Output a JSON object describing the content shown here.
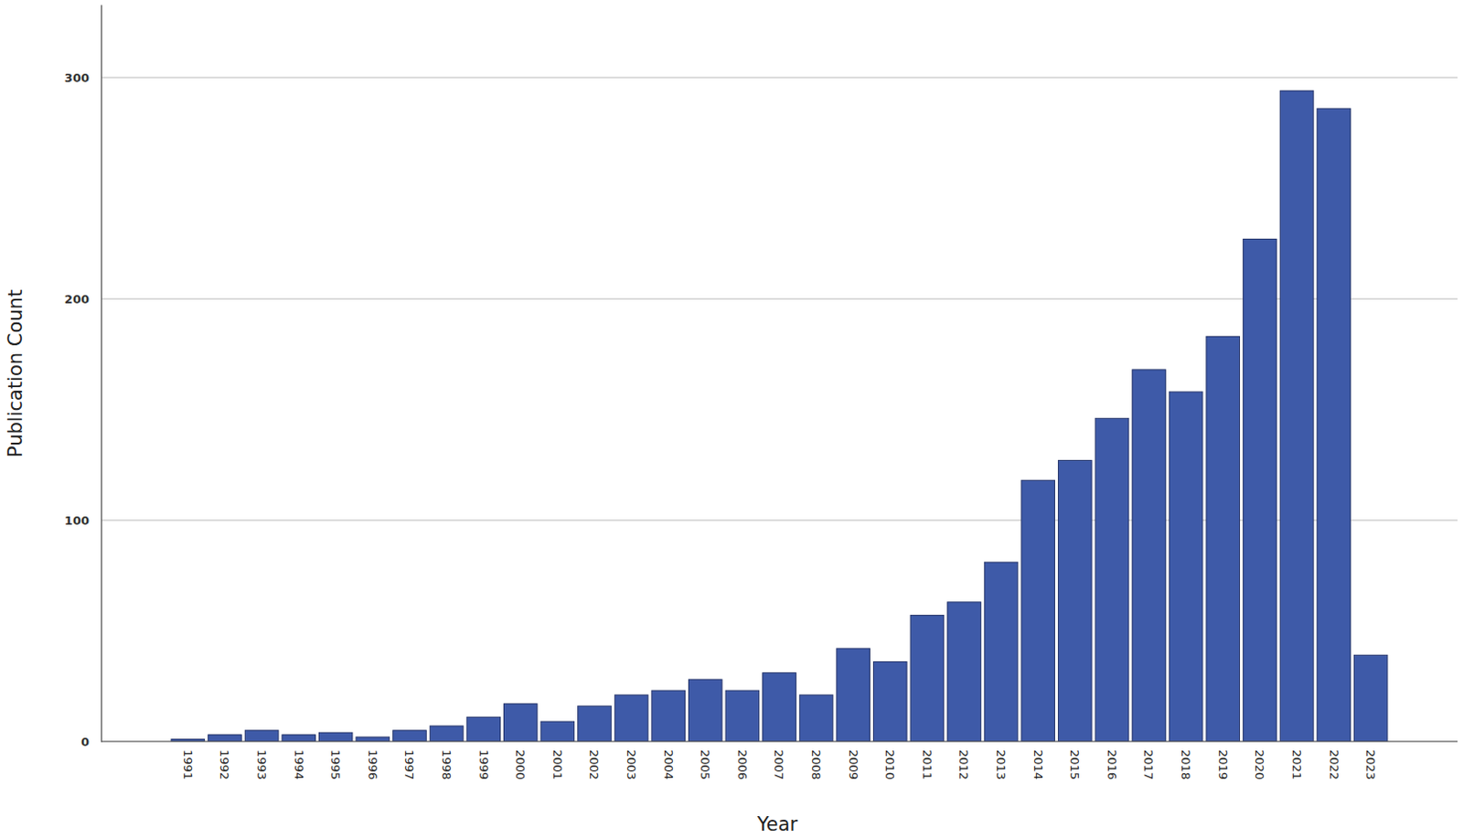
{
  "chart_data": {
    "type": "bar",
    "x_label": "Year",
    "y_label": "Publication Count",
    "categories": [
      "1991",
      "1992",
      "1993",
      "1994",
      "1995",
      "1996",
      "1997",
      "1998",
      "1999",
      "2000",
      "2001",
      "2002",
      "2003",
      "2004",
      "2005",
      "2006",
      "2007",
      "2008",
      "2009",
      "2010",
      "2011",
      "2012",
      "2013",
      "2014",
      "2015",
      "2016",
      "2017",
      "2018",
      "2019",
      "2020",
      "2021",
      "2022",
      "2023"
    ],
    "values": [
      1,
      3,
      5,
      3,
      4,
      2,
      5,
      7,
      11,
      17,
      9,
      16,
      21,
      23,
      28,
      23,
      31,
      21,
      42,
      36,
      57,
      63,
      81,
      118,
      127,
      146,
      168,
      158,
      183,
      227,
      294,
      286,
      39
    ],
    "color": "#3e5aa8",
    "ylim": [
      0,
      333
    ],
    "yticks": [
      0,
      100,
      200,
      300
    ],
    "grid": true
  }
}
